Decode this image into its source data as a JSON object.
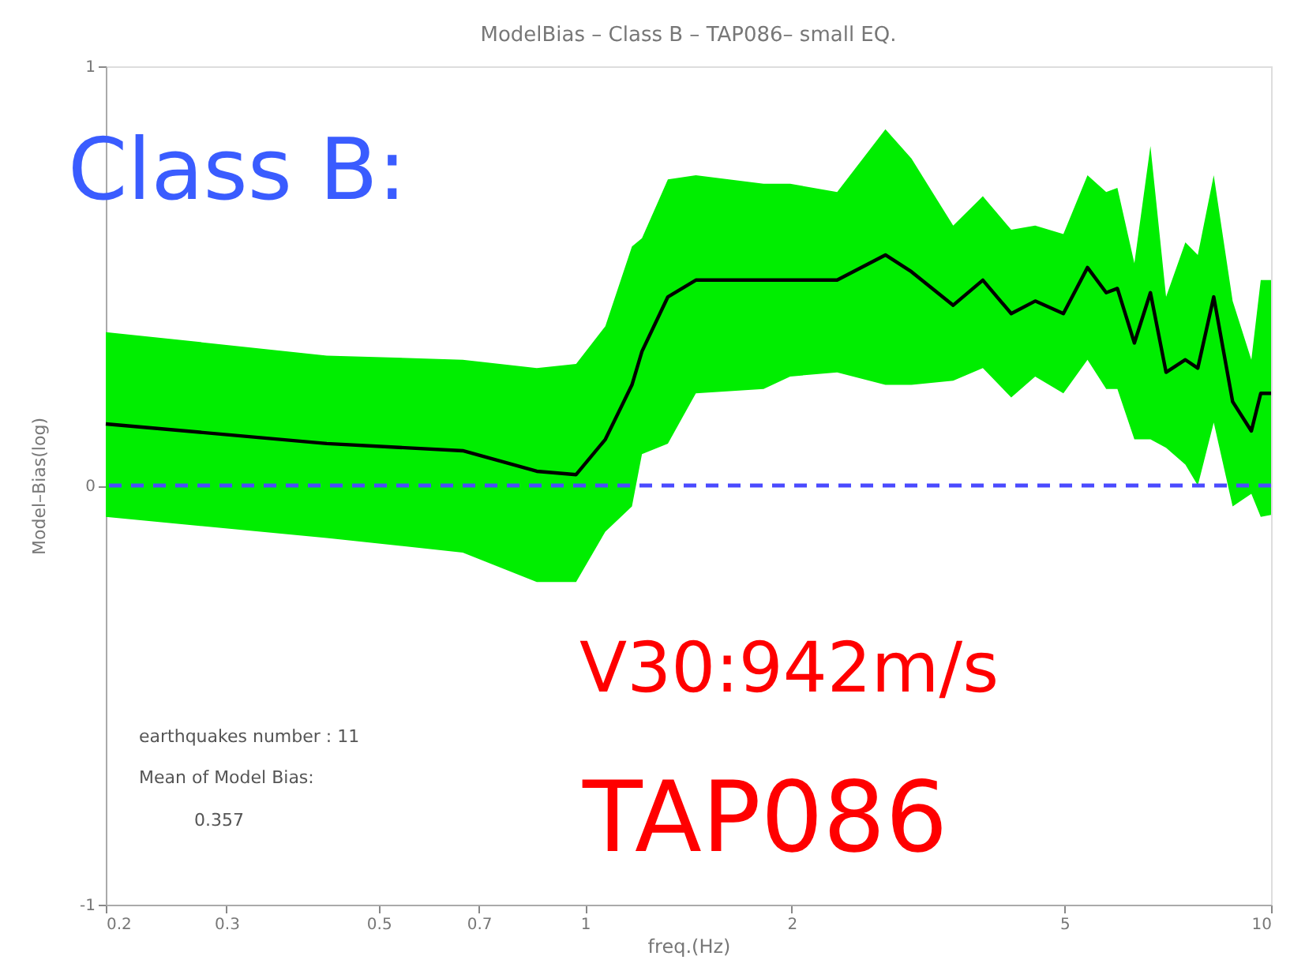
{
  "chart_data": {
    "type": "line",
    "title": "ModelBias – Class B – TAP086– small EQ.",
    "xlabel": "freq.(Hz)",
    "ylabel": "Model–Bias(log)",
    "x": [
      0.2,
      0.42,
      0.663,
      0.85,
      0.97,
      1.07,
      1.17,
      1.21,
      1.32,
      1.45,
      1.82,
      1.99,
      2.33,
      2.74,
      2.99,
      3.44,
      3.8,
      4.18,
      4.53,
      4.98,
      5.4,
      5.75,
      5.97,
      6.32,
      6.67,
      7.03,
      7.5,
      7.82,
      8.25,
      8.79,
      9.36,
      9.66,
      10
    ],
    "series": [
      {
        "color": "#000000",
        "values": [
          0.147,
          0.1,
          0.083,
          0.034,
          0.026,
          0.11,
          0.24,
          0.32,
          0.45,
          0.49,
          0.49,
          0.49,
          0.49,
          0.55,
          0.51,
          0.43,
          0.49,
          0.41,
          0.44,
          0.41,
          0.52,
          0.46,
          0.47,
          0.34,
          0.46,
          0.27,
          0.3,
          0.28,
          0.45,
          0.2,
          0.13,
          0.22,
          0.22
        ],
        "upper": [
          0.366,
          0.31,
          0.3,
          0.28,
          0.29,
          0.38,
          0.57,
          0.59,
          0.73,
          0.74,
          0.72,
          0.72,
          0.7,
          0.85,
          0.78,
          0.62,
          0.69,
          0.61,
          0.62,
          0.6,
          0.74,
          0.7,
          0.71,
          0.53,
          0.81,
          0.45,
          0.58,
          0.55,
          0.74,
          0.44,
          0.3,
          0.49,
          0.49
        ],
        "lower": [
          -0.075,
          -0.125,
          -0.16,
          -0.23,
          -0.23,
          -0.11,
          -0.05,
          0.075,
          0.1,
          0.22,
          0.23,
          0.26,
          0.27,
          0.24,
          0.24,
          0.25,
          0.28,
          0.21,
          0.26,
          0.22,
          0.3,
          0.23,
          0.23,
          0.11,
          0.11,
          0.09,
          0.05,
          0.0,
          0.15,
          -0.05,
          -0.02,
          -0.075,
          -0.07
        ]
      }
    ],
    "log": "x",
    "xlim": [
      0.2,
      10
    ],
    "xticks": [
      0.2,
      0.3,
      0.5,
      0.7,
      1,
      2,
      5,
      10
    ],
    "ylim": [
      -1,
      1
    ],
    "yticks": [
      -1,
      0,
      1
    ],
    "grid": false,
    "ref_lines": [
      {
        "axis": "y",
        "value": 0,
        "color": "#4a4aff",
        "line_style": "dashed"
      }
    ],
    "annotations": [
      "Class B:",
      "V30:942m/s",
      "TAP086",
      "earthquakes number : 11",
      "Mean of Model Bias:",
      "0.357"
    ]
  }
}
